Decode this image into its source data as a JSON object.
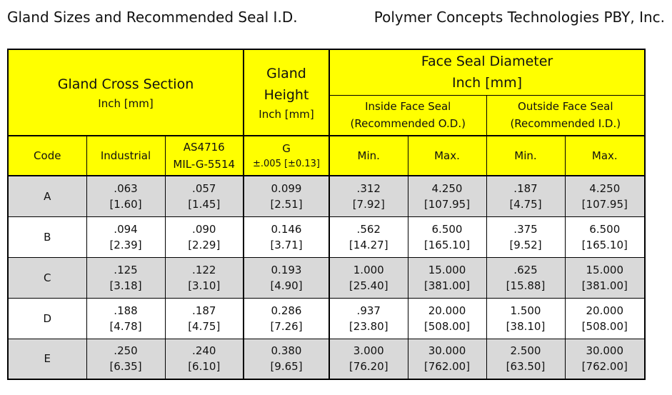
{
  "header": {
    "title": "Gland Sizes and Recommended Seal I.D.",
    "company": "Polymer Concepts Technologies PBY, Inc."
  },
  "table": {
    "group_cross_section": {
      "line1": "Gland Cross Section",
      "line2": "Inch [mm]"
    },
    "group_height": {
      "line1": "Gland",
      "line2": "Height",
      "line3": "Inch [mm]"
    },
    "group_face_seal": {
      "line1": "Face Seal Diameter",
      "line2": "Inch [mm]"
    },
    "group_inside": {
      "line1": "Inside Face Seal",
      "line2": "(Recommended O.D.)"
    },
    "group_outside": {
      "line1": "Outside Face Seal",
      "line2": "(Recommended I.D.)"
    },
    "col_code": "Code",
    "col_industrial": "Industrial",
    "col_as4716": {
      "line1": "AS4716",
      "line2": "MIL-G-5514"
    },
    "col_g": {
      "line1": "G",
      "line2": "±.005 [±0.13]"
    },
    "col_in_min": "Min.",
    "col_in_max": "Max.",
    "col_out_min": "Min.",
    "col_out_max": "Max.",
    "rows": [
      {
        "code": "A",
        "ind": [
          ".063",
          "[1.60]"
        ],
        "as": [
          ".057",
          "[1.45]"
        ],
        "g": [
          "0.099",
          "[2.51]"
        ],
        "in_min": [
          ".312",
          "[7.92]"
        ],
        "in_max": [
          "4.250",
          "[107.95]"
        ],
        "out_min": [
          ".187",
          "[4.75]"
        ],
        "out_max": [
          "4.250",
          "[107.95]"
        ]
      },
      {
        "code": "B",
        "ind": [
          ".094",
          "[2.39]"
        ],
        "as": [
          ".090",
          "[2.29]"
        ],
        "g": [
          "0.146",
          "[3.71]"
        ],
        "in_min": [
          ".562",
          "[14.27]"
        ],
        "in_max": [
          "6.500",
          "[165.10]"
        ],
        "out_min": [
          ".375",
          "[9.52]"
        ],
        "out_max": [
          "6.500",
          "[165.10]"
        ]
      },
      {
        "code": "C",
        "ind": [
          ".125",
          "[3.18]"
        ],
        "as": [
          ".122",
          "[3.10]"
        ],
        "g": [
          "0.193",
          "[4.90]"
        ],
        "in_min": [
          "1.000",
          "[25.40]"
        ],
        "in_max": [
          "15.000",
          "[381.00]"
        ],
        "out_min": [
          ".625",
          "[15.88]"
        ],
        "out_max": [
          "15.000",
          "[381.00]"
        ]
      },
      {
        "code": "D",
        "ind": [
          ".188",
          "[4.78]"
        ],
        "as": [
          ".187",
          "[4.75]"
        ],
        "g": [
          "0.286",
          "[7.26]"
        ],
        "in_min": [
          ".937",
          "[23.80]"
        ],
        "in_max": [
          "20.000",
          "[508.00]"
        ],
        "out_min": [
          "1.500",
          "[38.10]"
        ],
        "out_max": [
          "20.000",
          "[508.00]"
        ]
      },
      {
        "code": "E",
        "ind": [
          ".250",
          "[6.35]"
        ],
        "as": [
          ".240",
          "[6.10]"
        ],
        "g": [
          "0.380",
          "[9.65]"
        ],
        "in_min": [
          "3.000",
          "[76.20]"
        ],
        "in_max": [
          "30.000",
          "[762.00]"
        ],
        "out_min": [
          "2.500",
          "[63.50]"
        ],
        "out_max": [
          "30.000",
          "[762.00]"
        ]
      }
    ]
  }
}
